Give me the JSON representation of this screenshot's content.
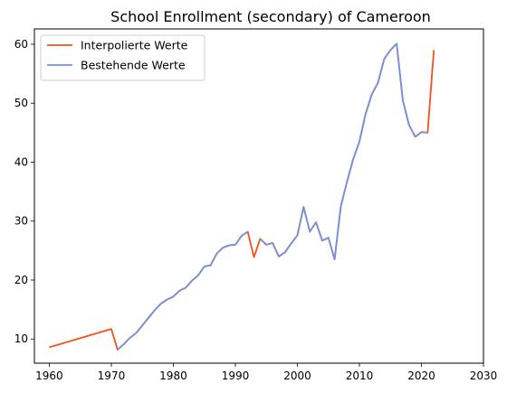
{
  "chart_data": {
    "type": "line",
    "title": "School Enrollment (secondary) of Cameroon",
    "xlabel": "",
    "ylabel": "",
    "xlim": [
      1957.6,
      2030
    ],
    "ylim": [
      5.9,
      62.6
    ],
    "xticks": [
      1960,
      1970,
      1980,
      1990,
      2000,
      2010,
      2020,
      2030
    ],
    "yticks": [
      10,
      20,
      30,
      40,
      50,
      60
    ],
    "grid": false,
    "legend_position": "top-left",
    "series": [
      {
        "name": "Interpolierte Werte",
        "color": "#f4511e",
        "x": [
          1960,
          1970,
          1971,
          1972,
          1973,
          1974,
          1975,
          1976,
          1977,
          1978,
          1979,
          1980,
          1981,
          1982,
          1983,
          1984,
          1985,
          1986,
          1987,
          1988,
          1989,
          1990,
          1991,
          1992,
          1993,
          1994,
          1995,
          1996,
          1997,
          1998,
          1999,
          2000,
          2001,
          2002,
          2003,
          2004,
          2005,
          2006,
          2007,
          2008,
          2009,
          2010,
          2011,
          2012,
          2013,
          2014,
          2015,
          2016,
          2017,
          2018,
          2019,
          2020,
          2021,
          2022
        ],
        "y": [
          8.6,
          11.7,
          8.2,
          9.1,
          10.2,
          11.0,
          12.3,
          13.6,
          14.9,
          16.0,
          16.7,
          17.2,
          18.2,
          18.7,
          19.9,
          20.8,
          22.3,
          22.5,
          24.5,
          25.5,
          25.9,
          26.0,
          27.5,
          28.2,
          23.9,
          27.0,
          26.0,
          26.3,
          24.0,
          24.7,
          26.2,
          27.6,
          32.4,
          28.2,
          29.8,
          26.7,
          27.2,
          23.5,
          32.5,
          36.7,
          40.5,
          43.5,
          48.2,
          51.5,
          53.5,
          57.5,
          59.0,
          60.1,
          50.5,
          46.3,
          44.3,
          45.1,
          45.0,
          59.0
        ]
      },
      {
        "name": "Bestehende Werte",
        "color": "#6f93de",
        "x": [
          1971,
          1972,
          1973,
          1974,
          1975,
          1976,
          1977,
          1978,
          1979,
          1980,
          1981,
          1982,
          1983,
          1984,
          1985,
          1986,
          1987,
          1988,
          1989,
          1990,
          1991,
          1992,
          null,
          1994,
          1995,
          1996,
          1997,
          1998,
          1999,
          2000,
          2001,
          2002,
          2003,
          2004,
          2005,
          2006,
          2007,
          2008,
          2009,
          2010,
          2011,
          2012,
          2013,
          2014,
          2015,
          2016,
          2017,
          2018,
          2019,
          2020,
          2021
        ],
        "y": [
          8.2,
          9.1,
          10.2,
          11.0,
          12.3,
          13.6,
          14.9,
          16.0,
          16.7,
          17.2,
          18.2,
          18.7,
          19.9,
          20.8,
          22.3,
          22.5,
          24.5,
          25.5,
          25.9,
          26.0,
          27.5,
          28.2,
          null,
          27.0,
          26.0,
          26.3,
          24.0,
          24.7,
          26.2,
          27.6,
          32.4,
          28.2,
          29.8,
          26.7,
          27.2,
          23.5,
          32.5,
          36.7,
          40.5,
          43.5,
          48.2,
          51.5,
          53.5,
          57.5,
          59.0,
          60.1,
          50.5,
          46.3,
          44.3,
          45.1,
          45.0
        ]
      }
    ]
  }
}
